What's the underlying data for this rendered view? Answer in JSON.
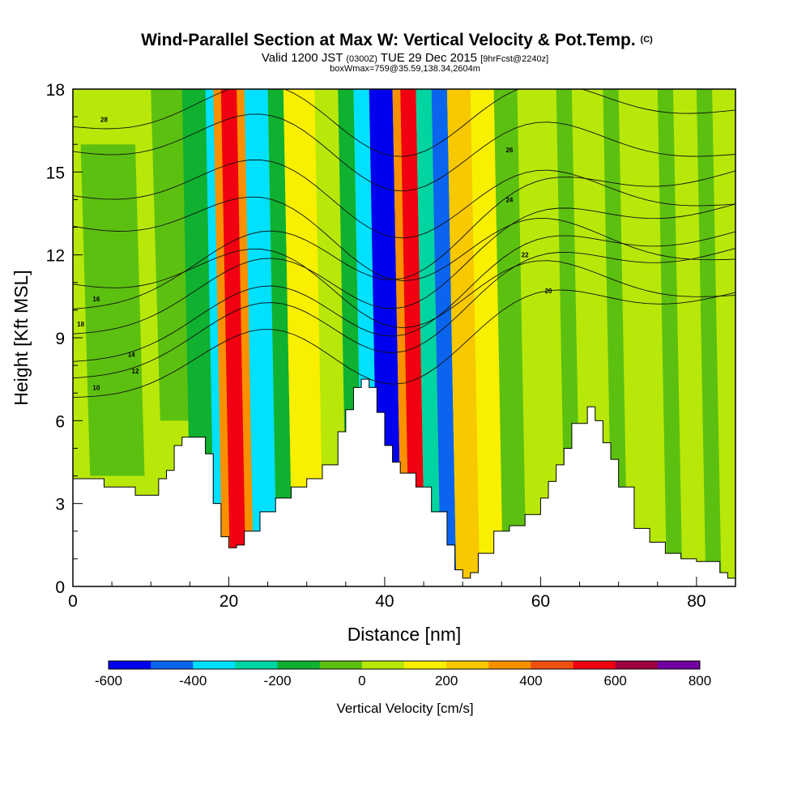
{
  "chart_data": {
    "type": "heatmap",
    "title": "Wind-Parallel Section at Max W: Vertical Velocity & Pot.Temp.",
    "title_mark": "(C)",
    "subtitle_parts": [
      "Valid 1200 JST",
      "(0300Z)",
      "TUE 29 Dec 2015",
      "[9hrFcst@2240z]"
    ],
    "subtitle2": "boxWmax=759@35.59,138.34,2604m",
    "xlabel": "Distance [nm]",
    "ylabel": "Height [Kft MSL]",
    "xlim": [
      0,
      85
    ],
    "ylim": [
      0,
      18
    ],
    "x_ticks": [
      0,
      20,
      40,
      60,
      80
    ],
    "x_tick_labels": [
      "0",
      "20",
      "40",
      "60",
      "80"
    ],
    "y_ticks": [
      0,
      3,
      6,
      9,
      12,
      15,
      18
    ],
    "y_tick_labels": [
      "0",
      "3",
      "6",
      "9",
      "12",
      "15",
      "18"
    ],
    "colorbar": {
      "label": "Vertical Velocity [cm/s]",
      "levels": [
        -600,
        -500,
        -400,
        -300,
        -200,
        -100,
        0,
        100,
        200,
        300,
        400,
        500,
        600,
        700,
        800
      ],
      "tick_labels": [
        "-600",
        "-400",
        "-200",
        "0",
        "200",
        "400",
        "600",
        "800"
      ],
      "tick_values": [
        -600,
        -400,
        -200,
        0,
        200,
        400,
        600,
        800
      ],
      "colors": [
        "#0000ee",
        "#0a64ee",
        "#00e0ff",
        "#00d4a0",
        "#10b030",
        "#5cc010",
        "#b8e80a",
        "#f8f000",
        "#f8c800",
        "#f89000",
        "#f05010",
        "#f00010",
        "#a00040",
        "#7000a0"
      ]
    },
    "terrain": [
      [
        0,
        3.9
      ],
      [
        3,
        3.9
      ],
      [
        4,
        3.6
      ],
      [
        7,
        3.6
      ],
      [
        8,
        3.3
      ],
      [
        10,
        3.3
      ],
      [
        11,
        3.9
      ],
      [
        12,
        4.2
      ],
      [
        13,
        5.1
      ],
      [
        14,
        5.4
      ],
      [
        16,
        5.4
      ],
      [
        17,
        4.8
      ],
      [
        18,
        3.0
      ],
      [
        19,
        1.8
      ],
      [
        20,
        1.4
      ],
      [
        21,
        1.5
      ],
      [
        22,
        2.0
      ],
      [
        24,
        2.7
      ],
      [
        26,
        3.2
      ],
      [
        28,
        3.6
      ],
      [
        30,
        3.9
      ],
      [
        32,
        4.4
      ],
      [
        34,
        5.6
      ],
      [
        35,
        6.4
      ],
      [
        36,
        7.2
      ],
      [
        37,
        7.5
      ],
      [
        38,
        7.2
      ],
      [
        39,
        6.3
      ],
      [
        40,
        5.1
      ],
      [
        41,
        4.5
      ],
      [
        42,
        4.1
      ],
      [
        44,
        3.6
      ],
      [
        46,
        2.7
      ],
      [
        48,
        1.5
      ],
      [
        49,
        0.6
      ],
      [
        50,
        0.3
      ],
      [
        51,
        0.5
      ],
      [
        52,
        1.2
      ],
      [
        54,
        2.0
      ],
      [
        56,
        2.2
      ],
      [
        58,
        2.6
      ],
      [
        60,
        3.2
      ],
      [
        61,
        3.8
      ],
      [
        62,
        4.4
      ],
      [
        63,
        5.0
      ],
      [
        64,
        5.9
      ],
      [
        66,
        6.5
      ],
      [
        67,
        6.0
      ],
      [
        68,
        5.2
      ],
      [
        69,
        4.6
      ],
      [
        70,
        3.6
      ],
      [
        72,
        2.1
      ],
      [
        74,
        1.6
      ],
      [
        76,
        1.2
      ],
      [
        78,
        1.0
      ],
      [
        80,
        0.9
      ],
      [
        82,
        0.9
      ],
      [
        83,
        0.5
      ],
      [
        84,
        0.3
      ],
      [
        85,
        0.3
      ]
    ],
    "vertical_velocity_bands": [
      {
        "x0": 0,
        "x1": 85,
        "value": 50
      },
      {
        "x0": 1,
        "x1": 8,
        "value": -50,
        "y0": 4,
        "y1": 16
      },
      {
        "x0": 10,
        "x1": 14,
        "value": -50,
        "y0": 6,
        "y1": 18
      },
      {
        "x0": 14,
        "x1": 18,
        "value": -150
      },
      {
        "x0": 17,
        "x1": 19,
        "value": -350
      },
      {
        "x0": 18,
        "x1": 22,
        "value": 350
      },
      {
        "x0": 19,
        "x1": 21,
        "value": 550
      },
      {
        "x0": 22,
        "x1": 25,
        "value": -350
      },
      {
        "x0": 25,
        "x1": 27,
        "value": -150
      },
      {
        "x0": 27,
        "x1": 31,
        "value": 150
      },
      {
        "x0": 31,
        "x1": 34,
        "value": 50
      },
      {
        "x0": 34,
        "x1": 36,
        "value": -150
      },
      {
        "x0": 36,
        "x1": 38,
        "value": -350
      },
      {
        "x0": 38,
        "x1": 41,
        "value": -550
      },
      {
        "x0": 41,
        "x1": 42,
        "value": 350
      },
      {
        "x0": 42,
        "x1": 44,
        "value": 550
      },
      {
        "x0": 44,
        "x1": 46,
        "value": -250
      },
      {
        "x0": 46,
        "x1": 48,
        "value": -450
      },
      {
        "x0": 48,
        "x1": 51,
        "value": 250
      },
      {
        "x0": 51,
        "x1": 54,
        "value": 150
      },
      {
        "x0": 54,
        "x1": 57,
        "value": -50
      },
      {
        "x0": 62,
        "x1": 64,
        "value": -50
      },
      {
        "x0": 68,
        "x1": 70,
        "value": -50
      },
      {
        "x0": 75,
        "x1": 77,
        "value": -50
      },
      {
        "x0": 80,
        "x1": 82,
        "value": -50
      }
    ],
    "theta_contours": [
      {
        "value": 10,
        "label": "10",
        "lx": 3,
        "ly": 7.2,
        "x_left": 7.1,
        "x_right": 10.8
      },
      {
        "value": 12,
        "label": "12",
        "lx": 8,
        "ly": 7.8,
        "x_left": 7.8,
        "x_right": 12.4
      },
      {
        "value": 14,
        "label": "14",
        "lx": 7.5,
        "ly": 8.4,
        "x_left": 8.4,
        "x_right": 13.0
      },
      {
        "value": 16,
        "label": "16",
        "lx": 3,
        "ly": 10.4,
        "x_left": 10.3,
        "x_right": 15.2
      },
      {
        "value": 18,
        "label": "18",
        "lx": 1,
        "ly": 9.5,
        "x_left": 9.4,
        "x_right": 14.0
      },
      {
        "value": 20,
        "label": "20",
        "lx": 61,
        "ly": 10.7,
        "x_left": 11.2,
        "x_right": 10.7
      },
      {
        "value": 22,
        "label": "22",
        "lx": 58,
        "ly": 12.0,
        "x_left": 13.3,
        "x_right": 12.0
      },
      {
        "value": 24,
        "label": "24",
        "lx": 56,
        "ly": 14.0,
        "x_left": 14.4,
        "x_right": 14.0
      },
      {
        "value": 26,
        "label": "26",
        "lx": 56,
        "ly": 15.8,
        "x_left": 16.0,
        "x_right": 15.8
      },
      {
        "value": 28,
        "label": "28",
        "lx": 4,
        "ly": 16.9,
        "x_left": 16.9,
        "x_right": 17.4
      }
    ]
  }
}
